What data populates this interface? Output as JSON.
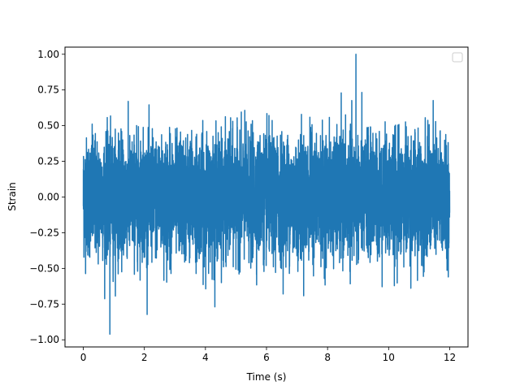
{
  "chart_data": {
    "type": "line",
    "title": "",
    "xlabel": "Time (s)",
    "ylabel": "Strain",
    "xlim": [
      -0.6,
      12.6
    ],
    "ylim": [
      -1.05,
      1.05
    ],
    "xticks": [
      0,
      2,
      4,
      6,
      8,
      10,
      12
    ],
    "xtick_labels": [
      "0",
      "2",
      "4",
      "6",
      "8",
      "10",
      "12"
    ],
    "yticks": [
      -1.0,
      -0.75,
      -0.5,
      -0.25,
      0.0,
      0.25,
      0.5,
      0.75,
      1.0
    ],
    "ytick_labels": [
      "−1.00",
      "−0.75",
      "−0.50",
      "−0.25",
      "0.00",
      "0.25",
      "0.50",
      "0.75",
      "1.00"
    ],
    "grid": false,
    "legend": {
      "placement": "upper right",
      "entries": []
    },
    "series": [
      {
        "color": "#1f77b4",
        "x_range": [
          0,
          12
        ],
        "typical_amplitude": 0.45,
        "peak_max": 1.0,
        "peak_max_at": 8.93,
        "peak_min": -0.96,
        "peak_min_at": 0.87
      }
    ]
  }
}
